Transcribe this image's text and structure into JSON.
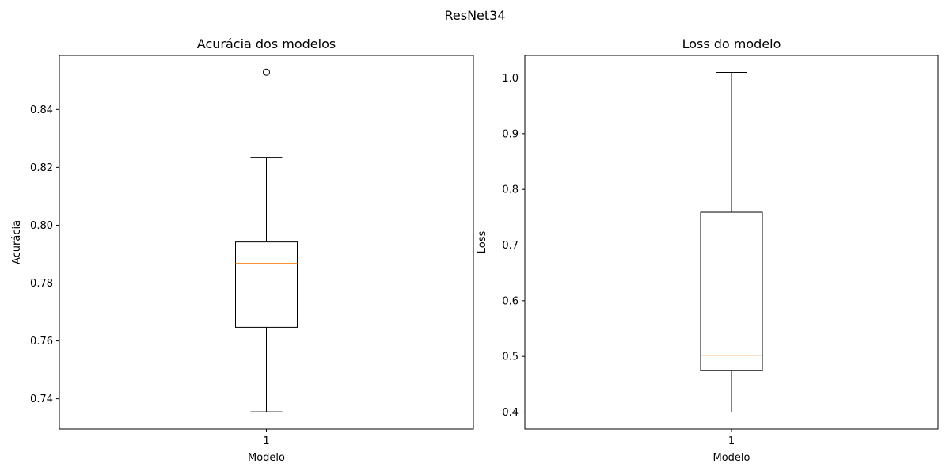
{
  "figure": {
    "suptitle": "ResNet34"
  },
  "chart_data": [
    {
      "type": "box",
      "title": "Acurácia dos modelos",
      "xlabel": "Modelo",
      "ylabel": "Acurácia",
      "categories": [
        "1"
      ],
      "ylim": [
        0.7295,
        0.8587
      ],
      "yticks": [
        0.74,
        0.76,
        0.78,
        0.8,
        0.82,
        0.84
      ],
      "ytick_labels": [
        "0.74",
        "0.76",
        "0.78",
        "0.80",
        "0.82",
        "0.84"
      ],
      "box": {
        "whisker_low": 0.7355,
        "q1": 0.7647,
        "median": 0.7868,
        "q3": 0.7942,
        "whisker_high": 0.8235,
        "outliers": [
          0.8529
        ]
      },
      "grid": false,
      "colors": {
        "box": "#000000",
        "median": "#ff7f0e"
      }
    },
    {
      "type": "box",
      "title": "Loss do modelo",
      "xlabel": "Modelo",
      "ylabel": "Loss",
      "categories": [
        "1"
      ],
      "ylim": [
        0.3695,
        1.0405
      ],
      "yticks": [
        0.4,
        0.5,
        0.6,
        0.7,
        0.8,
        0.9,
        1.0
      ],
      "ytick_labels": [
        "0.4",
        "0.5",
        "0.6",
        "0.7",
        "0.8",
        "0.9",
        "1.0"
      ],
      "box": {
        "whisker_low": 0.4,
        "q1": 0.475,
        "median": 0.502,
        "q3": 0.759,
        "whisker_high": 1.01,
        "outliers": []
      },
      "grid": false,
      "colors": {
        "box": "#000000",
        "median": "#ff7f0e"
      }
    }
  ]
}
